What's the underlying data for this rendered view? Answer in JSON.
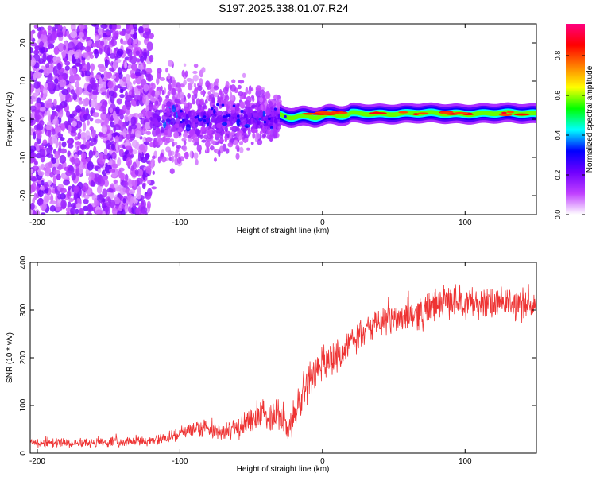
{
  "title": "S197.2025.338.01.07.R24",
  "chart_data": [
    {
      "type": "heatmap",
      "title": "",
      "xlabel": "Height of straight line (km)",
      "ylabel": "Frequency (Hz)",
      "xlim": [
        -205,
        150
      ],
      "ylim": [
        -25,
        25
      ],
      "xticks": [
        -200,
        -100,
        0,
        100
      ],
      "xtick_labels": [
        "-200",
        "-100",
        "0",
        "100"
      ],
      "yticks": [
        -20,
        -10,
        0,
        10,
        20
      ],
      "ytick_labels": [
        "-20",
        "-10",
        "0",
        "10",
        "20"
      ],
      "colorbar": {
        "label": "Normalized spectral amplitude",
        "range": [
          0,
          0.96
        ],
        "ticks": [
          0.0,
          0.2,
          0.4,
          0.6,
          0.8
        ],
        "tick_labels": [
          "0.0",
          "0.2",
          "0.4",
          "0.6",
          "0.8"
        ],
        "colors": [
          "#ffffff",
          "#c040ff",
          "#7000ff",
          "#0000ff",
          "#00ffff",
          "#00ff00",
          "#ffff00",
          "#ff8000",
          "#ff0000",
          "#ff0080"
        ]
      },
      "features": {
        "scatter_region_x": [
          -205,
          -120
        ],
        "transition_region_x": [
          -120,
          -30
        ],
        "band_region_x": [
          -30,
          150
        ],
        "band_center_hz": 1.5,
        "band_halfwidth_hz": 1.5
      }
    },
    {
      "type": "line",
      "title": "",
      "xlabel": "Height of straight line (km)",
      "ylabel": "SNR (10 * v/v)",
      "xlim": [
        -205,
        150
      ],
      "ylim": [
        0,
        400
      ],
      "xticks": [
        -200,
        -100,
        0,
        100
      ],
      "xtick_labels": [
        "-200",
        "-100",
        "0",
        "100"
      ],
      "yticks": [
        0,
        100,
        200,
        300,
        400
      ],
      "ytick_labels": [
        "0",
        "100",
        "200",
        "300",
        "400"
      ],
      "series": [
        {
          "name": "SNR",
          "color": "#ee3333",
          "x": [
            -205,
            -180,
            -150,
            -120,
            -110,
            -100,
            -90,
            -80,
            -70,
            -60,
            -50,
            -40,
            -30,
            -25,
            -20,
            -15,
            -10,
            -5,
            0,
            10,
            20,
            30,
            40,
            50,
            60,
            70,
            80,
            90,
            100,
            110,
            120,
            130,
            140,
            150
          ],
          "y": [
            22,
            22,
            23,
            25,
            32,
            40,
            52,
            55,
            45,
            50,
            70,
            80,
            85,
            50,
            70,
            115,
            150,
            170,
            190,
            205,
            230,
            258,
            272,
            282,
            290,
            296,
            312,
            320,
            318,
            315,
            313,
            313,
            312,
            312
          ],
          "noise_amplitude": [
            10,
            10,
            10,
            10,
            12,
            14,
            18,
            20,
            18,
            22,
            28,
            34,
            40,
            30,
            40,
            45,
            45,
            40,
            35,
            32,
            30,
            30,
            30,
            32,
            34,
            36,
            36,
            34,
            34,
            34,
            34,
            34,
            34,
            34
          ]
        }
      ]
    }
  ]
}
